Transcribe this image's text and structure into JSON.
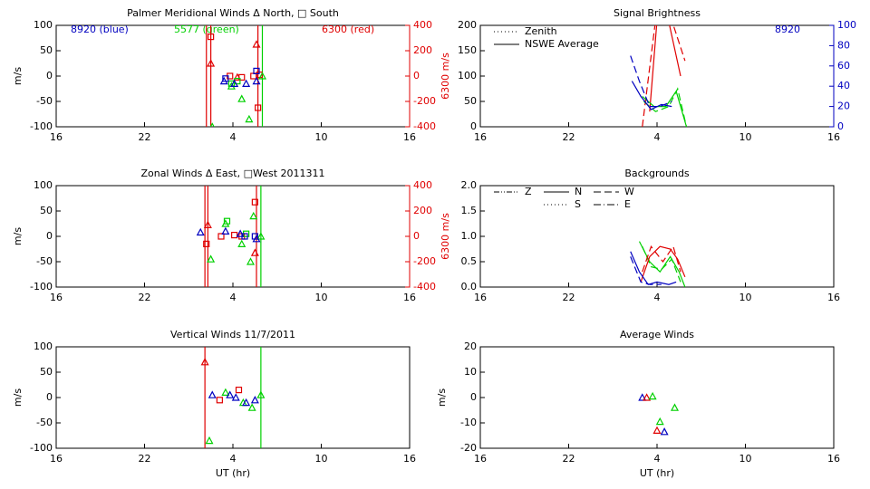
{
  "chart_data": [
    {
      "type": "scatter",
      "title": "Palmer Meridional Winds Δ North, □ South",
      "ylabel": "m/s",
      "y2label": "6300 m/s",
      "y2color": "#e00000",
      "xlim": [
        16,
        40
      ],
      "xticks": [
        16,
        22,
        {
          "value": 28,
          "label": "4"
        },
        {
          "value": 34,
          "label": "10"
        },
        {
          "value": 40,
          "label": "16"
        }
      ],
      "ylim": [
        -100,
        100
      ],
      "yticks": [
        -100,
        -50,
        0,
        50,
        100
      ],
      "y2lim": [
        -400,
        400
      ],
      "y2ticks": [
        -400,
        -200,
        0,
        200,
        400
      ],
      "annotations": [
        {
          "text": "8920 (blue)",
          "color": "#0000c0"
        },
        {
          "text": "5577 (green)",
          "color": "#00d000"
        },
        {
          "text": "6300 (red)",
          "color": "#e00000"
        }
      ],
      "vlines": [
        {
          "x": 26.2,
          "color": "#e00000"
        },
        {
          "x": 26.5,
          "color": "#e00000"
        },
        {
          "x": 29.7,
          "color": "#e00000"
        },
        {
          "x": 30.0,
          "color": "#00d000"
        }
      ],
      "series": [
        {
          "color": "#e00000",
          "axis": "y2",
          "marker": "square",
          "x": [
            26.5,
            27.8,
            28.6,
            29.4,
            29.8,
            29.7
          ],
          "values": [
            310,
            0,
            -10,
            0,
            10,
            -250
          ]
        },
        {
          "color": "#e00000",
          "axis": "y2",
          "marker": "triangle",
          "x": [
            26.5,
            28.3,
            29.6
          ],
          "values": [
            100,
            -10,
            250
          ]
        },
        {
          "color": "#00d000",
          "marker": "triangle",
          "x": [
            26.6,
            27.9,
            28.6,
            29.1,
            30.0
          ],
          "values": [
            -100,
            -20,
            -45,
            -85,
            0
          ]
        },
        {
          "color": "#00d000",
          "marker": "square",
          "x": [
            27.9,
            28.3
          ],
          "values": [
            -15,
            -10
          ]
        },
        {
          "color": "#0000c0",
          "marker": "triangle",
          "x": [
            27.4,
            28.1,
            28.9,
            29.6
          ],
          "values": [
            -10,
            -15,
            -15,
            -10
          ]
        },
        {
          "color": "#0000c0",
          "marker": "square",
          "x": [
            27.5,
            29.6
          ],
          "values": [
            -5,
            10
          ]
        }
      ]
    },
    {
      "type": "line",
      "title": "Signal Brightness",
      "y2color": "#0000c0",
      "xlim": [
        16,
        40
      ],
      "xticks": [
        16,
        22,
        {
          "value": 28,
          "label": "4"
        },
        {
          "value": 34,
          "label": "10"
        },
        {
          "value": 40,
          "label": "16"
        }
      ],
      "ylim": [
        0,
        200
      ],
      "yticks": [
        0,
        50,
        100,
        150,
        200
      ],
      "y2lim": [
        0,
        100
      ],
      "y2ticks": [
        0,
        20,
        40,
        60,
        80,
        100
      ],
      "annotations": [
        {
          "text": "8920",
          "color": "#0000c0"
        }
      ],
      "legend": [
        {
          "label": "Zenith",
          "dash": "dotted"
        },
        {
          "label": "NSWE Average",
          "dash": "solid"
        }
      ],
      "series": [
        {
          "color": "#e00000",
          "dash": "solid",
          "x": [
            27.5,
            28.0,
            28.6
          ],
          "values": [
            30,
            210,
            230
          ]
        },
        {
          "color": "#e00000",
          "dash": "solid",
          "x": [
            28.7,
            29.6
          ],
          "values": [
            220,
            100
          ]
        },
        {
          "color": "#e00000",
          "dash": "dashed",
          "x": [
            27.0,
            27.9,
            29.0,
            29.9
          ],
          "values": [
            0,
            210,
            210,
            130
          ]
        },
        {
          "color": "#00d000",
          "dash": "solid",
          "x": [
            27.0,
            27.8,
            28.6,
            29.3,
            29.6,
            30.0
          ],
          "values": [
            60,
            40,
            40,
            70,
            40,
            0
          ]
        },
        {
          "color": "#00d000",
          "dash": "dashed",
          "x": [
            27.1,
            27.9,
            28.8,
            29.4,
            30.0
          ],
          "values": [
            50,
            30,
            40,
            75,
            0
          ]
        },
        {
          "color": "#0000c0",
          "dash": "solid",
          "axis": "y2",
          "x": [
            26.3,
            26.9,
            27.6,
            28.3,
            29.0
          ],
          "values": [
            45,
            30,
            17,
            22,
            20
          ]
        },
        {
          "color": "#0000c0",
          "dash": "dashed",
          "axis": "y2",
          "x": [
            26.2,
            26.8,
            27.5,
            28.2,
            29.0
          ],
          "values": [
            70,
            45,
            20,
            20,
            25
          ]
        }
      ]
    },
    {
      "type": "scatter",
      "title": "Zonal Winds Δ East, □West 2011311",
      "ylabel": "m/s",
      "y2label": "6300 m/s",
      "y2color": "#e00000",
      "xlim": [
        16,
        40
      ],
      "xticks": [
        16,
        22,
        {
          "value": 28,
          "label": "4"
        },
        {
          "value": 34,
          "label": "10"
        },
        {
          "value": 40,
          "label": "16"
        }
      ],
      "ylim": [
        -100,
        100
      ],
      "yticks": [
        -100,
        -50,
        0,
        50,
        100
      ],
      "y2lim": [
        -400,
        400
      ],
      "y2ticks": [
        -400,
        -200,
        0,
        200,
        400
      ],
      "vlines": [
        {
          "x": 26.1,
          "color": "#e00000"
        },
        {
          "x": 26.3,
          "color": "#e00000"
        },
        {
          "x": 29.6,
          "color": "#e00000"
        },
        {
          "x": 29.9,
          "color": "#00d000"
        }
      ],
      "series": [
        {
          "color": "#e00000",
          "axis": "y2",
          "marker": "square",
          "x": [
            26.2,
            27.2,
            28.1,
            28.6,
            29.5
          ],
          "values": [
            -60,
            0,
            10,
            0,
            270
          ]
        },
        {
          "color": "#e00000",
          "axis": "y2",
          "marker": "triangle",
          "x": [
            26.3,
            29.5
          ],
          "values": [
            90,
            -130
          ]
        },
        {
          "color": "#00d000",
          "marker": "triangle",
          "x": [
            26.5,
            27.5,
            28.6,
            29.2,
            29.4,
            29.9
          ],
          "values": [
            -45,
            25,
            -15,
            -50,
            40,
            0
          ]
        },
        {
          "color": "#00d000",
          "marker": "square",
          "x": [
            27.6,
            28.9
          ],
          "values": [
            30,
            5
          ]
        },
        {
          "color": "#0000c0",
          "marker": "triangle",
          "x": [
            25.8,
            27.5,
            28.5,
            29.6
          ],
          "values": [
            8,
            10,
            5,
            -5
          ]
        },
        {
          "color": "#0000c0",
          "marker": "square",
          "x": [
            28.8,
            29.5
          ],
          "values": [
            0,
            0
          ]
        }
      ]
    },
    {
      "type": "line",
      "title": "Backgrounds",
      "xlim": [
        16,
        40
      ],
      "xticks": [
        16,
        22,
        {
          "value": 28,
          "label": "4"
        },
        {
          "value": 34,
          "label": "10"
        },
        {
          "value": 40,
          "label": "16"
        }
      ],
      "ylim": [
        0,
        2
      ],
      "yticks": [
        {
          "value": 0,
          "label": "0.0"
        },
        {
          "value": 0.5,
          "label": "0.5"
        },
        {
          "value": 1,
          "label": "1.0"
        },
        {
          "value": 1.5,
          "label": "1.5"
        },
        {
          "value": 2,
          "label": "2.0"
        }
      ],
      "legend": [
        {
          "label": "Z",
          "dash": "dashdotdot"
        },
        {
          "label": "N",
          "dash": "solid"
        },
        {
          "label": "W",
          "dash": "dashed"
        },
        {
          "label": "S",
          "dash": "dotted"
        },
        {
          "label": "E",
          "dash": "dashdot"
        }
      ],
      "series": [
        {
          "color": "#00d000",
          "dash": "solid",
          "x": [
            26.8,
            27.5,
            28.2,
            28.9,
            29.5,
            29.9
          ],
          "values": [
            0.9,
            0.5,
            0.3,
            0.6,
            0.3,
            0.0
          ]
        },
        {
          "color": "#00d000",
          "dash": "dashed",
          "x": [
            27.0,
            27.6,
            28.3,
            29.0,
            29.6
          ],
          "values": [
            0.8,
            0.4,
            0.35,
            0.55,
            0.1
          ]
        },
        {
          "color": "#e00000",
          "dash": "solid",
          "x": [
            26.9,
            27.5,
            28.2,
            28.9,
            29.4,
            29.9
          ],
          "values": [
            0.1,
            0.6,
            0.8,
            0.75,
            0.55,
            0.2
          ]
        },
        {
          "color": "#e00000",
          "dash": "dashed",
          "x": [
            27.0,
            27.6,
            28.4,
            29.1,
            29.6
          ],
          "values": [
            0.3,
            0.8,
            0.5,
            0.8,
            0.3
          ]
        },
        {
          "color": "#0000c0",
          "dash": "solid",
          "x": [
            26.2,
            26.8,
            27.4,
            28.0,
            28.8,
            29.3
          ],
          "values": [
            0.7,
            0.3,
            0.05,
            0.1,
            0.05,
            0.1
          ]
        },
        {
          "color": "#0000c0",
          "dash": "dashed",
          "x": [
            26.2,
            26.9,
            27.5,
            28.3
          ],
          "values": [
            0.6,
            0.1,
            0.05,
            0.05
          ]
        }
      ]
    },
    {
      "type": "scatter",
      "title": "Vertical Winds 11/7/2011",
      "ylabel": "m/s",
      "xlabel": "UT (hr)",
      "xlim": [
        16,
        40
      ],
      "xticks": [
        16,
        22,
        {
          "value": 28,
          "label": "4"
        },
        {
          "value": 34,
          "label": "10"
        },
        {
          "value": 40,
          "label": "16"
        }
      ],
      "ylim": [
        -100,
        100
      ],
      "yticks": [
        -100,
        -50,
        0,
        50,
        100
      ],
      "vlines": [
        {
          "x": 26.1,
          "color": "#e00000"
        },
        {
          "x": 29.9,
          "color": "#00d000"
        }
      ],
      "series": [
        {
          "color": "#e00000",
          "marker": "triangle",
          "x": [
            26.1
          ],
          "values": [
            70
          ]
        },
        {
          "color": "#e00000",
          "marker": "square",
          "x": [
            27.1,
            28.4
          ],
          "values": [
            -5,
            15
          ]
        },
        {
          "color": "#00d000",
          "marker": "triangle",
          "x": [
            26.4,
            27.5,
            28.7,
            29.3,
            29.9
          ],
          "values": [
            -85,
            10,
            -10,
            -20,
            5
          ]
        },
        {
          "color": "#0000c0",
          "marker": "triangle",
          "x": [
            26.6,
            27.8,
            28.2,
            28.9,
            29.5
          ],
          "values": [
            5,
            5,
            0,
            -10,
            -5
          ]
        }
      ]
    },
    {
      "type": "scatter",
      "title": "Average Winds",
      "ylabel": "m/s",
      "xlabel": "UT (hr)",
      "xlim": [
        16,
        40
      ],
      "xticks": [
        16,
        22,
        {
          "value": 28,
          "label": "4"
        },
        {
          "value": 34,
          "label": "10"
        },
        {
          "value": 40,
          "label": "16"
        }
      ],
      "ylim": [
        -20,
        20
      ],
      "yticks": [
        -20,
        -10,
        0,
        10,
        20
      ],
      "series": [
        {
          "color": "#0000c0",
          "marker": "triangle",
          "x": [
            27.0,
            28.5
          ],
          "values": [
            0,
            -13.5
          ]
        },
        {
          "color": "#e00000",
          "marker": "triangle",
          "x": [
            27.3,
            28.0
          ],
          "values": [
            0,
            -13
          ]
        },
        {
          "color": "#00d000",
          "marker": "triangle",
          "x": [
            27.7,
            28.2,
            29.2
          ],
          "values": [
            0.5,
            -9.5,
            -4
          ]
        }
      ]
    }
  ]
}
